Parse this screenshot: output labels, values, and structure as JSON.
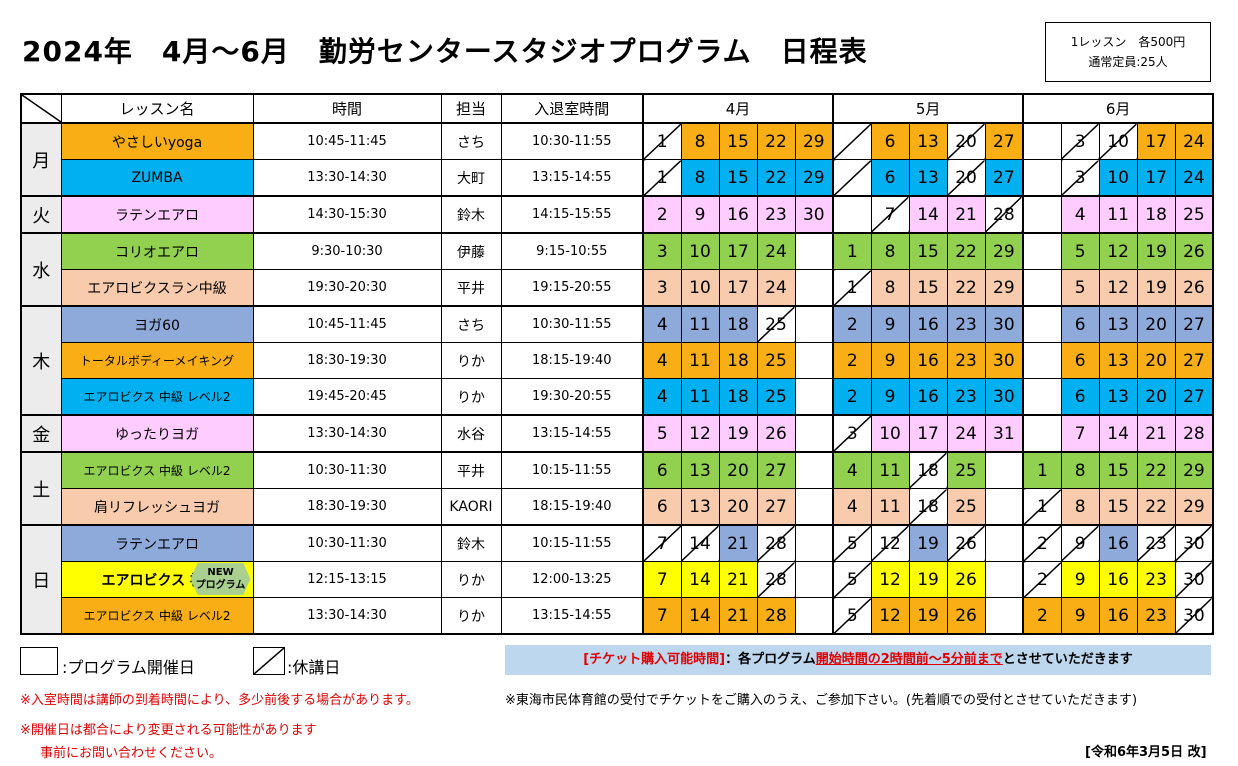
{
  "header": {
    "title": "2024年　4月～6月　勤労センタースタジオプログラム　日程表",
    "info": [
      "1レッスン　各500円",
      "通常定員:25人"
    ]
  },
  "table": {
    "columns": [
      "レッスン名",
      "時間",
      "担当",
      "入退室時間"
    ],
    "months": [
      "4月",
      "5月",
      "6月"
    ],
    "groups": [
      {
        "day": "月",
        "rows": [
          {
            "name": "やさしいyoga",
            "time": "10:45-11:45",
            "staff": "さち",
            "room": "10:30-11:55",
            "color": "#f9ae16",
            "cells": [
              {
                "day": 1,
                "off": true
              },
              8,
              15,
              22,
              29,
              {
                "off": true
              },
              6,
              13,
              {
                "day": 20,
                "off": true
              },
              27,
              null,
              {
                "day": 3,
                "off": true
              },
              {
                "day": 10,
                "off": true
              },
              17,
              24
            ]
          },
          {
            "name": "ZUMBA",
            "time": "13:30-14:30",
            "staff": "大町",
            "room": "13:15-14:55",
            "color": "#00b0f0",
            "cells": [
              {
                "day": 1,
                "off": true
              },
              8,
              15,
              22,
              29,
              {
                "off": true
              },
              6,
              13,
              {
                "day": 20,
                "off": true
              },
              27,
              null,
              {
                "day": 3,
                "off": true
              },
              10,
              17,
              24
            ]
          }
        ]
      },
      {
        "day": "火",
        "rows": [
          {
            "name": "ラテンエアロ",
            "time": "14:30-15:30",
            "staff": "鈴木",
            "room": "14:15-15:55",
            "color": "#ffccff",
            "cells": [
              2,
              9,
              16,
              23,
              30,
              null,
              {
                "day": 7,
                "off": true
              },
              14,
              21,
              {
                "day": 28,
                "off": true
              },
              null,
              4,
              11,
              18,
              25
            ]
          }
        ]
      },
      {
        "day": "水",
        "rows": [
          {
            "name": "コリオエアロ",
            "time": "9:30-10:30",
            "staff": "伊藤",
            "room": "9:15-10:55",
            "color": "#92d050",
            "cells": [
              3,
              10,
              17,
              24,
              null,
              1,
              8,
              15,
              22,
              29,
              null,
              5,
              12,
              19,
              26
            ]
          },
          {
            "name": "エアロビクスラン中級",
            "time": "19:30-20:30",
            "staff": "平井",
            "room": "19:15-20:55",
            "color": "#f8cbad",
            "cells": [
              3,
              10,
              17,
              24,
              null,
              {
                "day": 1,
                "off": true
              },
              8,
              15,
              22,
              29,
              null,
              5,
              12,
              19,
              26
            ]
          }
        ]
      },
      {
        "day": "木",
        "rows": [
          {
            "name": "ヨガ60",
            "time": "10:45-11:45",
            "staff": "さち",
            "room": "10:30-11:55",
            "color": "#8eaadb",
            "cells": [
              4,
              11,
              18,
              {
                "day": 25,
                "off": true
              },
              null,
              2,
              9,
              16,
              23,
              30,
              null,
              6,
              13,
              20,
              27
            ]
          },
          {
            "name": "トータルボディーメイキング",
            "time": "18:30-19:30",
            "staff": "りか",
            "room": "18:15-19:40",
            "color": "#f9ae16",
            "cells": [
              4,
              11,
              18,
              25,
              null,
              2,
              9,
              16,
              23,
              30,
              null,
              6,
              13,
              20,
              27
            ]
          },
          {
            "name": "エアロビクス 中級  レベル2",
            "time": "19:45-20:45",
            "staff": "りか",
            "room": "19:30-20:55",
            "color": "#00b0f0",
            "cells": [
              4,
              11,
              18,
              25,
              null,
              2,
              9,
              16,
              23,
              30,
              null,
              6,
              13,
              20,
              27
            ]
          }
        ]
      },
      {
        "day": "金",
        "rows": [
          {
            "name": "ゆったりヨガ",
            "time": "13:30-14:30",
            "staff": "水谷",
            "room": "13:15-14:55",
            "color": "#ffccff",
            "cells": [
              5,
              12,
              19,
              26,
              null,
              {
                "day": 3,
                "off": true
              },
              10,
              17,
              24,
              31,
              null,
              7,
              14,
              21,
              28
            ]
          }
        ]
      },
      {
        "day": "土",
        "rows": [
          {
            "name": "エアロビクス 中級  レベル2",
            "time": "10:30-11:30",
            "staff": "平井",
            "room": "10:15-11:55",
            "color": "#92d050",
            "cells": [
              6,
              13,
              20,
              27,
              null,
              4,
              11,
              {
                "day": 18,
                "off": true
              },
              25,
              null,
              1,
              8,
              15,
              22,
              29
            ]
          },
          {
            "name": "肩リフレッシュヨガ",
            "time": "18:30-19:30",
            "staff": "KAORI",
            "room": "18:15-19:40",
            "color": "#f8cbad",
            "cells": [
              6,
              13,
              20,
              27,
              null,
              4,
              11,
              {
                "day": 18,
                "off": true
              },
              25,
              null,
              {
                "day": 1,
                "off": true
              },
              8,
              15,
              22,
              29
            ]
          }
        ]
      },
      {
        "day": "日",
        "rows": [
          {
            "name": "ラテンエアロ",
            "time": "10:30-11:30",
            "staff": "鈴木",
            "room": "10:15-11:55",
            "color": "#8eaadb",
            "cells": [
              {
                "day": 7,
                "off": true
              },
              {
                "day": 14,
                "off": true
              },
              21,
              {
                "day": 28,
                "off": true
              },
              null,
              {
                "day": 5,
                "off": true
              },
              {
                "day": 12,
                "off": true
              },
              19,
              {
                "day": 26,
                "off": true
              },
              null,
              {
                "day": 2,
                "off": true
              },
              {
                "day": 9,
                "off": true
              },
              16,
              {
                "day": 23,
                "off": true
              },
              {
                "day": 30,
                "off": true
              }
            ]
          },
          {
            "name": "エアロビクス 初級",
            "badge": [
              "NEW",
              "プログラム"
            ],
            "time": "12:15-13:15",
            "staff": "りか",
            "room": "12:00-13:25",
            "color": "#ffff00",
            "cells": [
              7,
              14,
              21,
              {
                "day": 28,
                "off": true
              },
              null,
              {
                "day": 5,
                "off": true
              },
              12,
              19,
              26,
              null,
              {
                "day": 2,
                "off": true
              },
              9,
              16,
              23,
              {
                "day": 30,
                "off": true
              }
            ]
          },
          {
            "name": "エアロビクス 中級 レベル2",
            "time": "13:30-14:30",
            "staff": "りか",
            "room": "13:15-14:55",
            "color": "#f9ae16",
            "cells": [
              7,
              14,
              21,
              28,
              null,
              {
                "day": 5,
                "off": true
              },
              12,
              19,
              26,
              null,
              2,
              9,
              16,
              23,
              {
                "day": 30,
                "off": true
              }
            ]
          }
        ]
      }
    ]
  },
  "legend": {
    "open": ":プログラム開催日",
    "closed": ":休講日"
  },
  "ticket": [
    "[チケット購入可能時間]",
    "：各プログラム",
    "開始時間の2時間前～5分前まで",
    "とさせていただきます"
  ],
  "notes": [
    "※入室時間は講師の到着時間により、多少前後する場合があります。",
    "※東海市民体育館の受付でチケットをご購入のうえ、ご参加下さい。(先着順での受付とさせていただきます)",
    "※開催日は都合により変更される可能性があります",
    "事前にお問い合わせください。"
  ],
  "revision": "[令和6年3月5日 改]"
}
